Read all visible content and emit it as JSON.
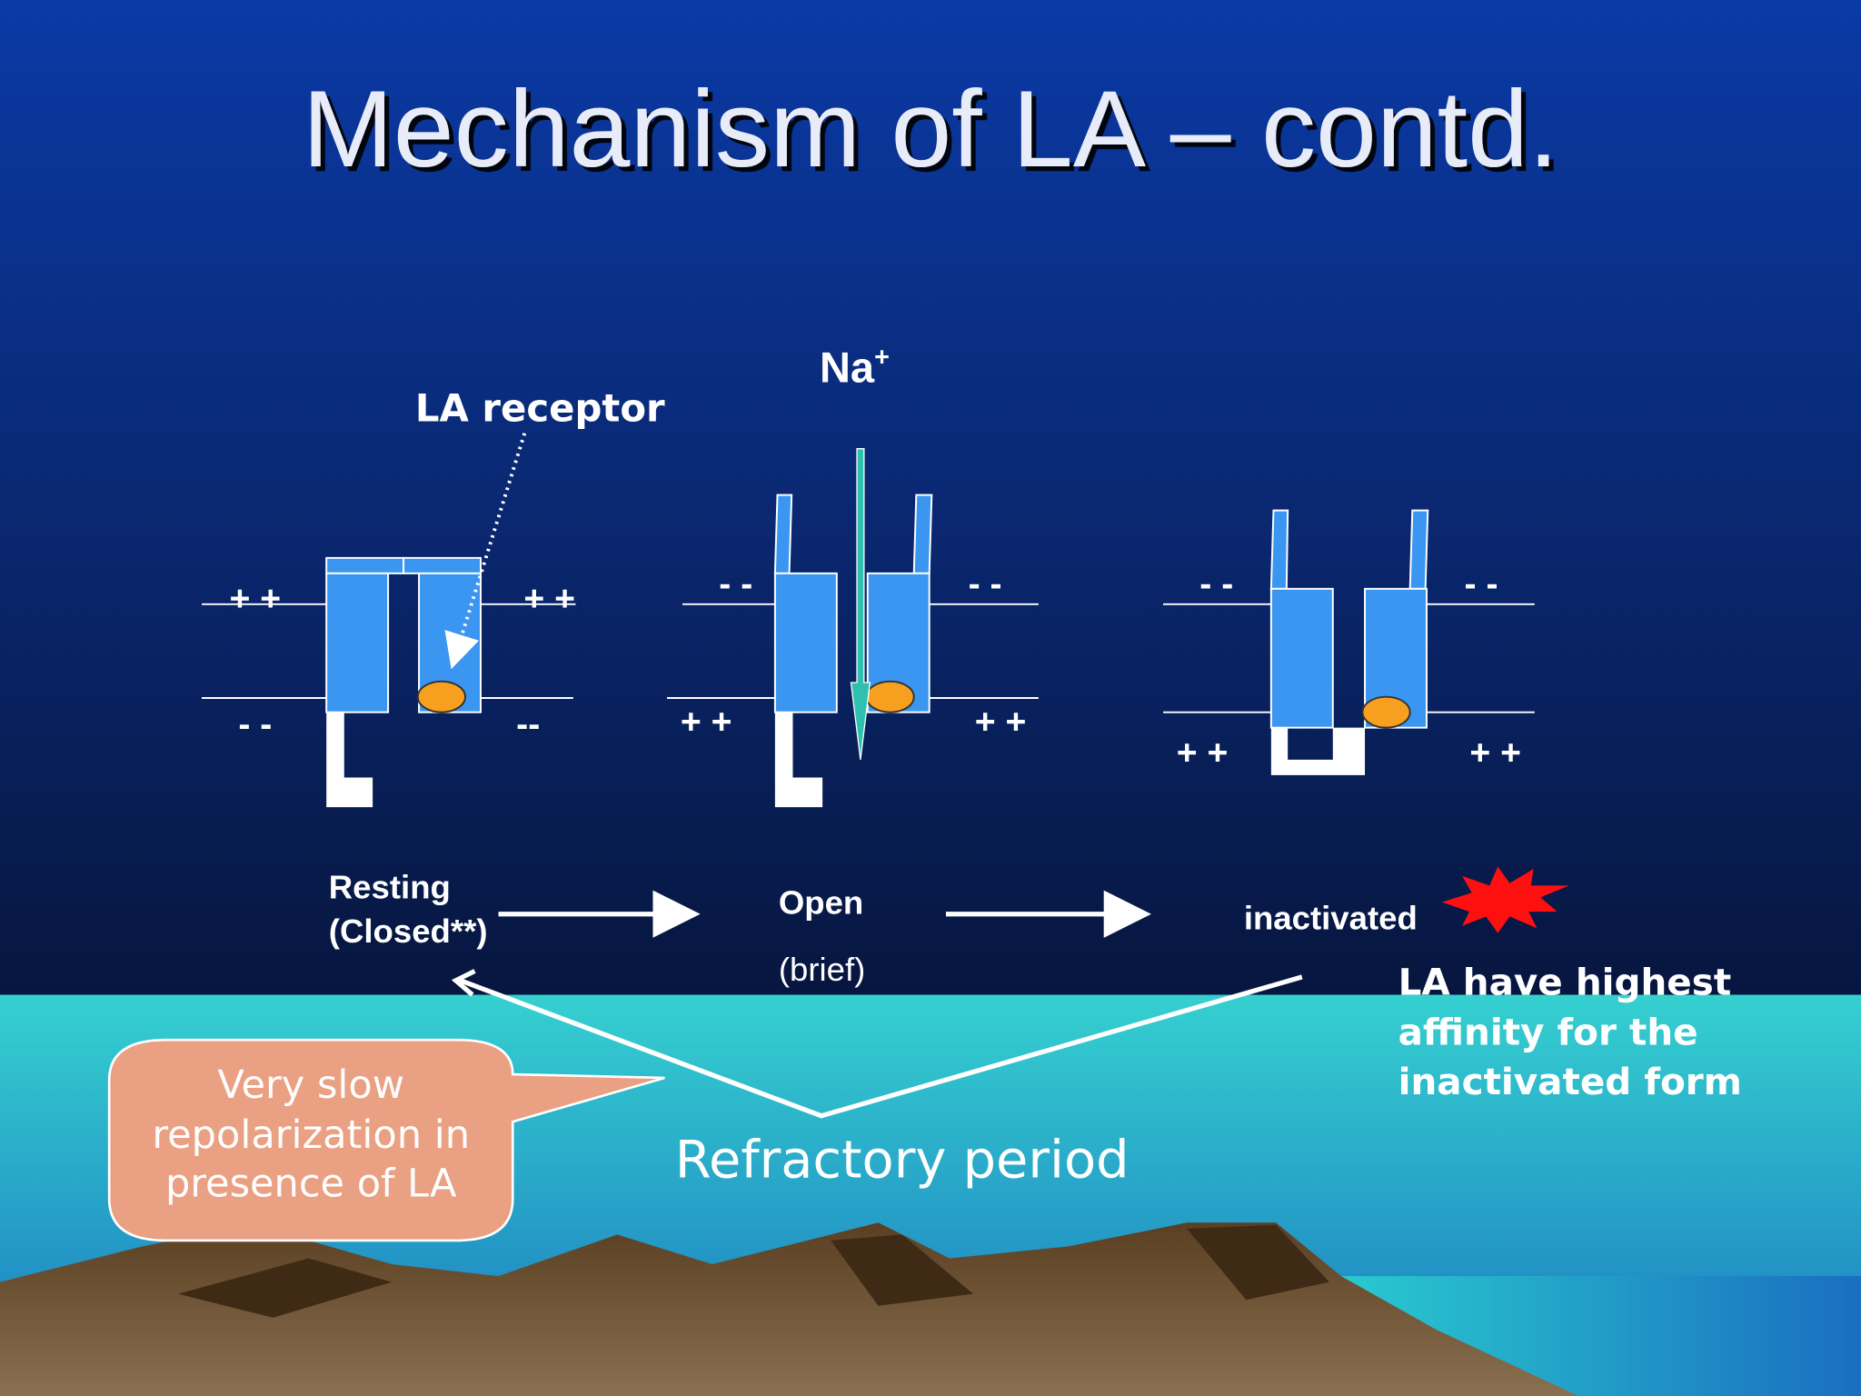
{
  "title": "Mechanism of LA – contd.",
  "ion": {
    "symbol": "Na",
    "charge": "+"
  },
  "receptor_label": "LA receptor",
  "channels": [
    {
      "charges": [
        "+ +",
        "+ +",
        "- -",
        "--"
      ]
    },
    {
      "charges": [
        "- -",
        "- -",
        "+ +",
        "+ +"
      ]
    },
    {
      "charges": [
        "- -",
        "- -",
        "+ +",
        "+ +"
      ]
    }
  ],
  "states": [
    {
      "label": "Resting",
      "note": "(Closed**)"
    },
    {
      "label": "Open",
      "note": "(brief)"
    },
    {
      "label": "inactivated"
    }
  ],
  "callout": {
    "lines": [
      "Very slow",
      "repolarization in",
      "presence of LA"
    ]
  },
  "period": "Refractory period",
  "affinity_note": {
    "lines": [
      "LA have highest",
      "affinity for the",
      "inactivated form"
    ]
  }
}
